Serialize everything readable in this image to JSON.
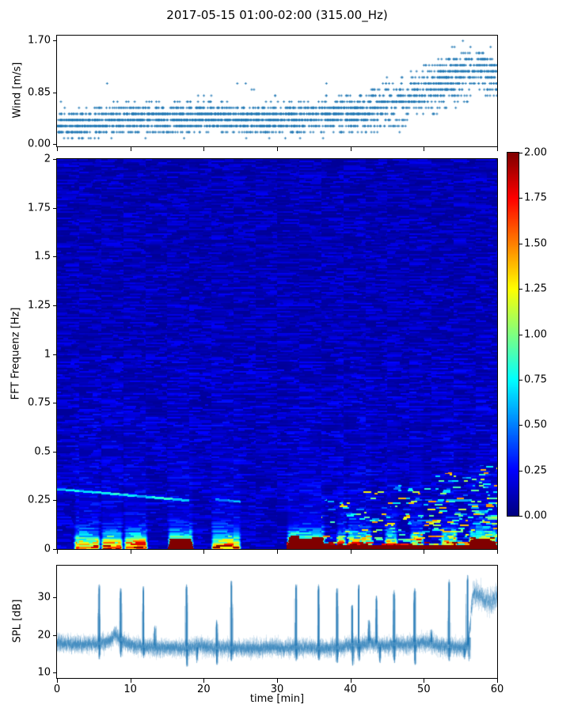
{
  "title": "2017-05-15 01:00-02:00 (315.00_Hz)",
  "xlabel": "time [min]",
  "x_ticks": {
    "values": [
      0,
      10,
      20,
      30,
      40,
      50,
      60
    ],
    "labels": [
      "0",
      "10",
      "20",
      "30",
      "40",
      "50",
      "60"
    ]
  },
  "colors": {
    "accent": "#1f77b4",
    "axis": "#000000",
    "background": "#ffffff"
  },
  "chart_data": [
    {
      "id": "wind",
      "type": "scatter",
      "ylabel": "Wind [m/s]",
      "marker": "+",
      "color": "#1f77b4",
      "xlim": [
        0,
        60
      ],
      "ylim": [
        -0.04,
        1.78
      ],
      "ytick_values": [
        0,
        0.85,
        1.7
      ],
      "ytick_labels": [
        "0.00",
        "0.85",
        "1.70"
      ],
      "quantization_mps": 0.1,
      "n_points": 3000,
      "profile_t_mean_spread": [
        [
          0,
          0.3,
          0.1
        ],
        [
          3,
          0.34,
          0.11
        ],
        [
          6,
          0.38,
          0.12
        ],
        [
          9,
          0.42,
          0.12
        ],
        [
          12,
          0.4,
          0.12
        ],
        [
          15,
          0.43,
          0.12
        ],
        [
          18,
          0.45,
          0.12
        ],
        [
          21,
          0.44,
          0.12
        ],
        [
          24,
          0.42,
          0.11
        ],
        [
          27,
          0.38,
          0.11
        ],
        [
          30,
          0.42,
          0.12
        ],
        [
          33,
          0.44,
          0.12
        ],
        [
          36,
          0.45,
          0.12
        ],
        [
          39,
          0.47,
          0.13
        ],
        [
          42,
          0.52,
          0.15
        ],
        [
          45,
          0.62,
          0.18
        ],
        [
          48,
          0.78,
          0.2
        ],
        [
          51,
          0.95,
          0.21
        ],
        [
          54,
          1.08,
          0.21
        ],
        [
          56,
          1.18,
          0.19
        ],
        [
          58,
          1.24,
          0.17
        ],
        [
          59,
          1.15,
          0.17
        ],
        [
          60,
          1.02,
          0.14
        ]
      ]
    },
    {
      "id": "spectrogram",
      "type": "heatmap",
      "ylabel": "FFT Frequenz [Hz]",
      "colormap": "jet",
      "xlim": [
        0,
        60
      ],
      "ylim": [
        0,
        2
      ],
      "ytick_values": [
        0,
        0.25,
        0.5,
        0.75,
        1,
        1.25,
        1.5,
        1.75,
        2
      ],
      "ytick_labels": [
        "0",
        "0.25",
        "0.5",
        "0.75",
        "1",
        "1.25",
        "1.5",
        "1.75",
        "2"
      ],
      "colorbar": {
        "vmin": 0,
        "vmax": 2,
        "tick_values": [
          0,
          0.25,
          0.5,
          0.75,
          1,
          1.25,
          1.5,
          1.75,
          2
        ],
        "tick_labels": [
          "0.00",
          "0.25",
          "0.50",
          "0.75",
          "1.00",
          "1.25",
          "1.50",
          "1.75",
          "2.00"
        ]
      },
      "background_level": 0.045,
      "events_t0_t1_peak": [
        [
          2.2,
          5.9,
          1.45
        ],
        [
          5.9,
          9.0,
          1.55
        ],
        [
          9.0,
          12.4,
          1.7
        ],
        [
          15.0,
          18.6,
          2.0
        ],
        [
          20.9,
          25.1,
          1.5
        ],
        [
          31.2,
          36.6,
          2.0
        ],
        [
          38.0,
          39.5,
          1.35
        ],
        [
          39.5,
          43.0,
          1.55
        ],
        [
          44.5,
          46.5,
          1.45
        ],
        [
          48.0,
          50.0,
          1.5
        ],
        [
          52.2,
          54.6,
          1.8
        ],
        [
          56.0,
          60.0,
          1.9
        ]
      ],
      "baseline_band": {
        "t_start": 31.2,
        "f_max": 0.021,
        "value": 2.0
      },
      "speckle": {
        "t_start": 36,
        "f_max_start": 0.25,
        "f_max_end": 0.45,
        "density_start": 0.1,
        "density_end": 0.38
      },
      "narrowband_lines_t0_t1_f0_f1_v": [
        [
          0,
          18,
          0.31,
          0.25,
          0.7
        ],
        [
          21.5,
          25,
          0.255,
          0.245,
          0.55
        ],
        [
          53,
          56.5,
          0.25,
          0.25,
          0.7
        ]
      ]
    },
    {
      "id": "spl",
      "type": "line",
      "ylabel": "SPL [dB]",
      "color": "#1f77b4",
      "xlim": [
        0,
        60
      ],
      "ylim": [
        8.5,
        38.5
      ],
      "ytick_values": [
        10,
        20,
        30
      ],
      "ytick_labels": [
        "10",
        "20",
        "30"
      ],
      "baseline_t_db": [
        [
          0,
          17.8
        ],
        [
          2,
          17.4
        ],
        [
          4,
          17.6
        ],
        [
          6,
          17.8
        ],
        [
          7.2,
          18.6
        ],
        [
          7.9,
          20.2
        ],
        [
          8.6,
          18.8
        ],
        [
          10,
          17.3
        ],
        [
          12,
          16.9
        ],
        [
          14,
          16.6
        ],
        [
          16,
          16.5
        ],
        [
          18,
          16.6
        ],
        [
          19,
          17.1
        ],
        [
          21,
          16.6
        ],
        [
          23,
          16.6
        ],
        [
          25,
          16.4
        ],
        [
          27,
          16.5
        ],
        [
          29,
          16.7
        ],
        [
          31,
          16.5
        ],
        [
          33,
          16.7
        ],
        [
          35,
          16.5
        ],
        [
          37,
          16.5
        ],
        [
          39,
          16.7
        ],
        [
          40.5,
          17.6
        ],
        [
          41.5,
          17.1
        ],
        [
          42.7,
          18.2
        ],
        [
          43.8,
          17.2
        ],
        [
          45,
          17.3
        ],
        [
          46.3,
          17.6
        ],
        [
          47.5,
          17.3
        ],
        [
          48.6,
          17.7
        ],
        [
          49.6,
          18.0
        ],
        [
          50.6,
          17.9
        ],
        [
          51.6,
          17.2
        ],
        [
          52.6,
          16.9
        ],
        [
          53.8,
          17.0
        ],
        [
          55,
          16.6
        ],
        [
          55.9,
          16.9
        ],
        [
          56.25,
          22
        ],
        [
          56.6,
          30.5
        ],
        [
          57.1,
          31.3
        ],
        [
          57.6,
          30.4
        ],
        [
          58.2,
          29.6
        ],
        [
          58.8,
          28.9
        ],
        [
          59.2,
          29.0
        ],
        [
          59.6,
          29.8
        ],
        [
          60,
          30.3
        ]
      ],
      "spread_db": 1.1,
      "spread_db_final": 1.8,
      "spikes_up_t_peak": [
        [
          5.7,
          33.5
        ],
        [
          8.6,
          32.5
        ],
        [
          11.7,
          33.0
        ],
        [
          13.3,
          22.5
        ],
        [
          17.6,
          33.5
        ],
        [
          21.7,
          24.0
        ],
        [
          23.7,
          34.5
        ],
        [
          32.5,
          33.5
        ],
        [
          35.6,
          33.5
        ],
        [
          38.1,
          32.5
        ],
        [
          40.2,
          28.0
        ],
        [
          41.1,
          33.5
        ],
        [
          42.5,
          24.0
        ],
        [
          43.5,
          30.5
        ],
        [
          45.9,
          32.0
        ],
        [
          48.7,
          32.5
        ],
        [
          51.0,
          21.5
        ],
        [
          53.4,
          34.8
        ],
        [
          55.9,
          36.0
        ]
      ],
      "spikes_down_t_low": [
        [
          5.75,
          13.5
        ],
        [
          8.65,
          14.0
        ],
        [
          11.75,
          13.8
        ],
        [
          17.65,
          11.5
        ],
        [
          19.0,
          12.5
        ],
        [
          21.75,
          12.0
        ],
        [
          23.75,
          13.0
        ],
        [
          32.55,
          13.0
        ],
        [
          35.65,
          13.2
        ],
        [
          38.15,
          12.5
        ],
        [
          40.25,
          11.8
        ],
        [
          41.15,
          13.0
        ],
        [
          44.0,
          12.5
        ],
        [
          45.95,
          12.5
        ],
        [
          48.75,
          12.0
        ],
        [
          53.45,
          13.0
        ],
        [
          55.5,
          13.5
        ],
        [
          56.1,
          13.0
        ]
      ]
    }
  ]
}
